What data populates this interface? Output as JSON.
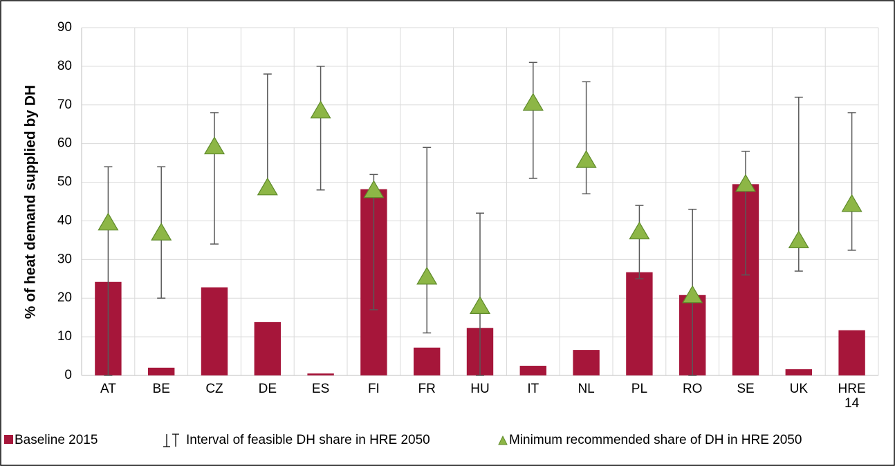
{
  "chart_data": {
    "type": "bar",
    "y_label": "% of heat demand supplied by DH",
    "categories": [
      "AT",
      "BE",
      "CZ",
      "DE",
      "ES",
      "FI",
      "FR",
      "HU",
      "IT",
      "NL",
      "PL",
      "RO",
      "SE",
      "UK",
      "HRE 14"
    ],
    "series": [
      {
        "name": "Baseline 2015",
        "color": "#a6163a",
        "values": [
          24.2,
          2,
          22.8,
          13.8,
          0.5,
          48.2,
          7.2,
          12.3,
          2.5,
          6.6,
          26.7,
          20.8,
          49.5,
          1.6,
          11.7
        ]
      }
    ],
    "interval": {
      "name": "Interval of feasible DH share in HRE 2050",
      "color": "#595959",
      "low": [
        0,
        20,
        34,
        49,
        48,
        17,
        11,
        0,
        51,
        47,
        25,
        0,
        26,
        27,
        32.4
      ],
      "high": [
        54,
        54,
        68,
        78,
        80,
        52,
        59,
        42,
        81,
        76,
        44,
        43,
        58,
        72,
        68
      ]
    },
    "markers": {
      "name": "Minimum recommended share of DH in HRE 2050",
      "color": "#8db646",
      "edge": "#5e8a2a",
      "values": [
        39.6,
        37,
        59.3,
        48.7,
        68.6,
        48,
        25.6,
        18,
        70.6,
        55.8,
        37.3,
        20.8,
        49.6,
        35,
        44.4
      ]
    },
    "ylim": [
      0,
      90
    ],
    "yticks": [
      0,
      10,
      20,
      30,
      40,
      50,
      60,
      70,
      80,
      90
    ],
    "grid": true
  }
}
